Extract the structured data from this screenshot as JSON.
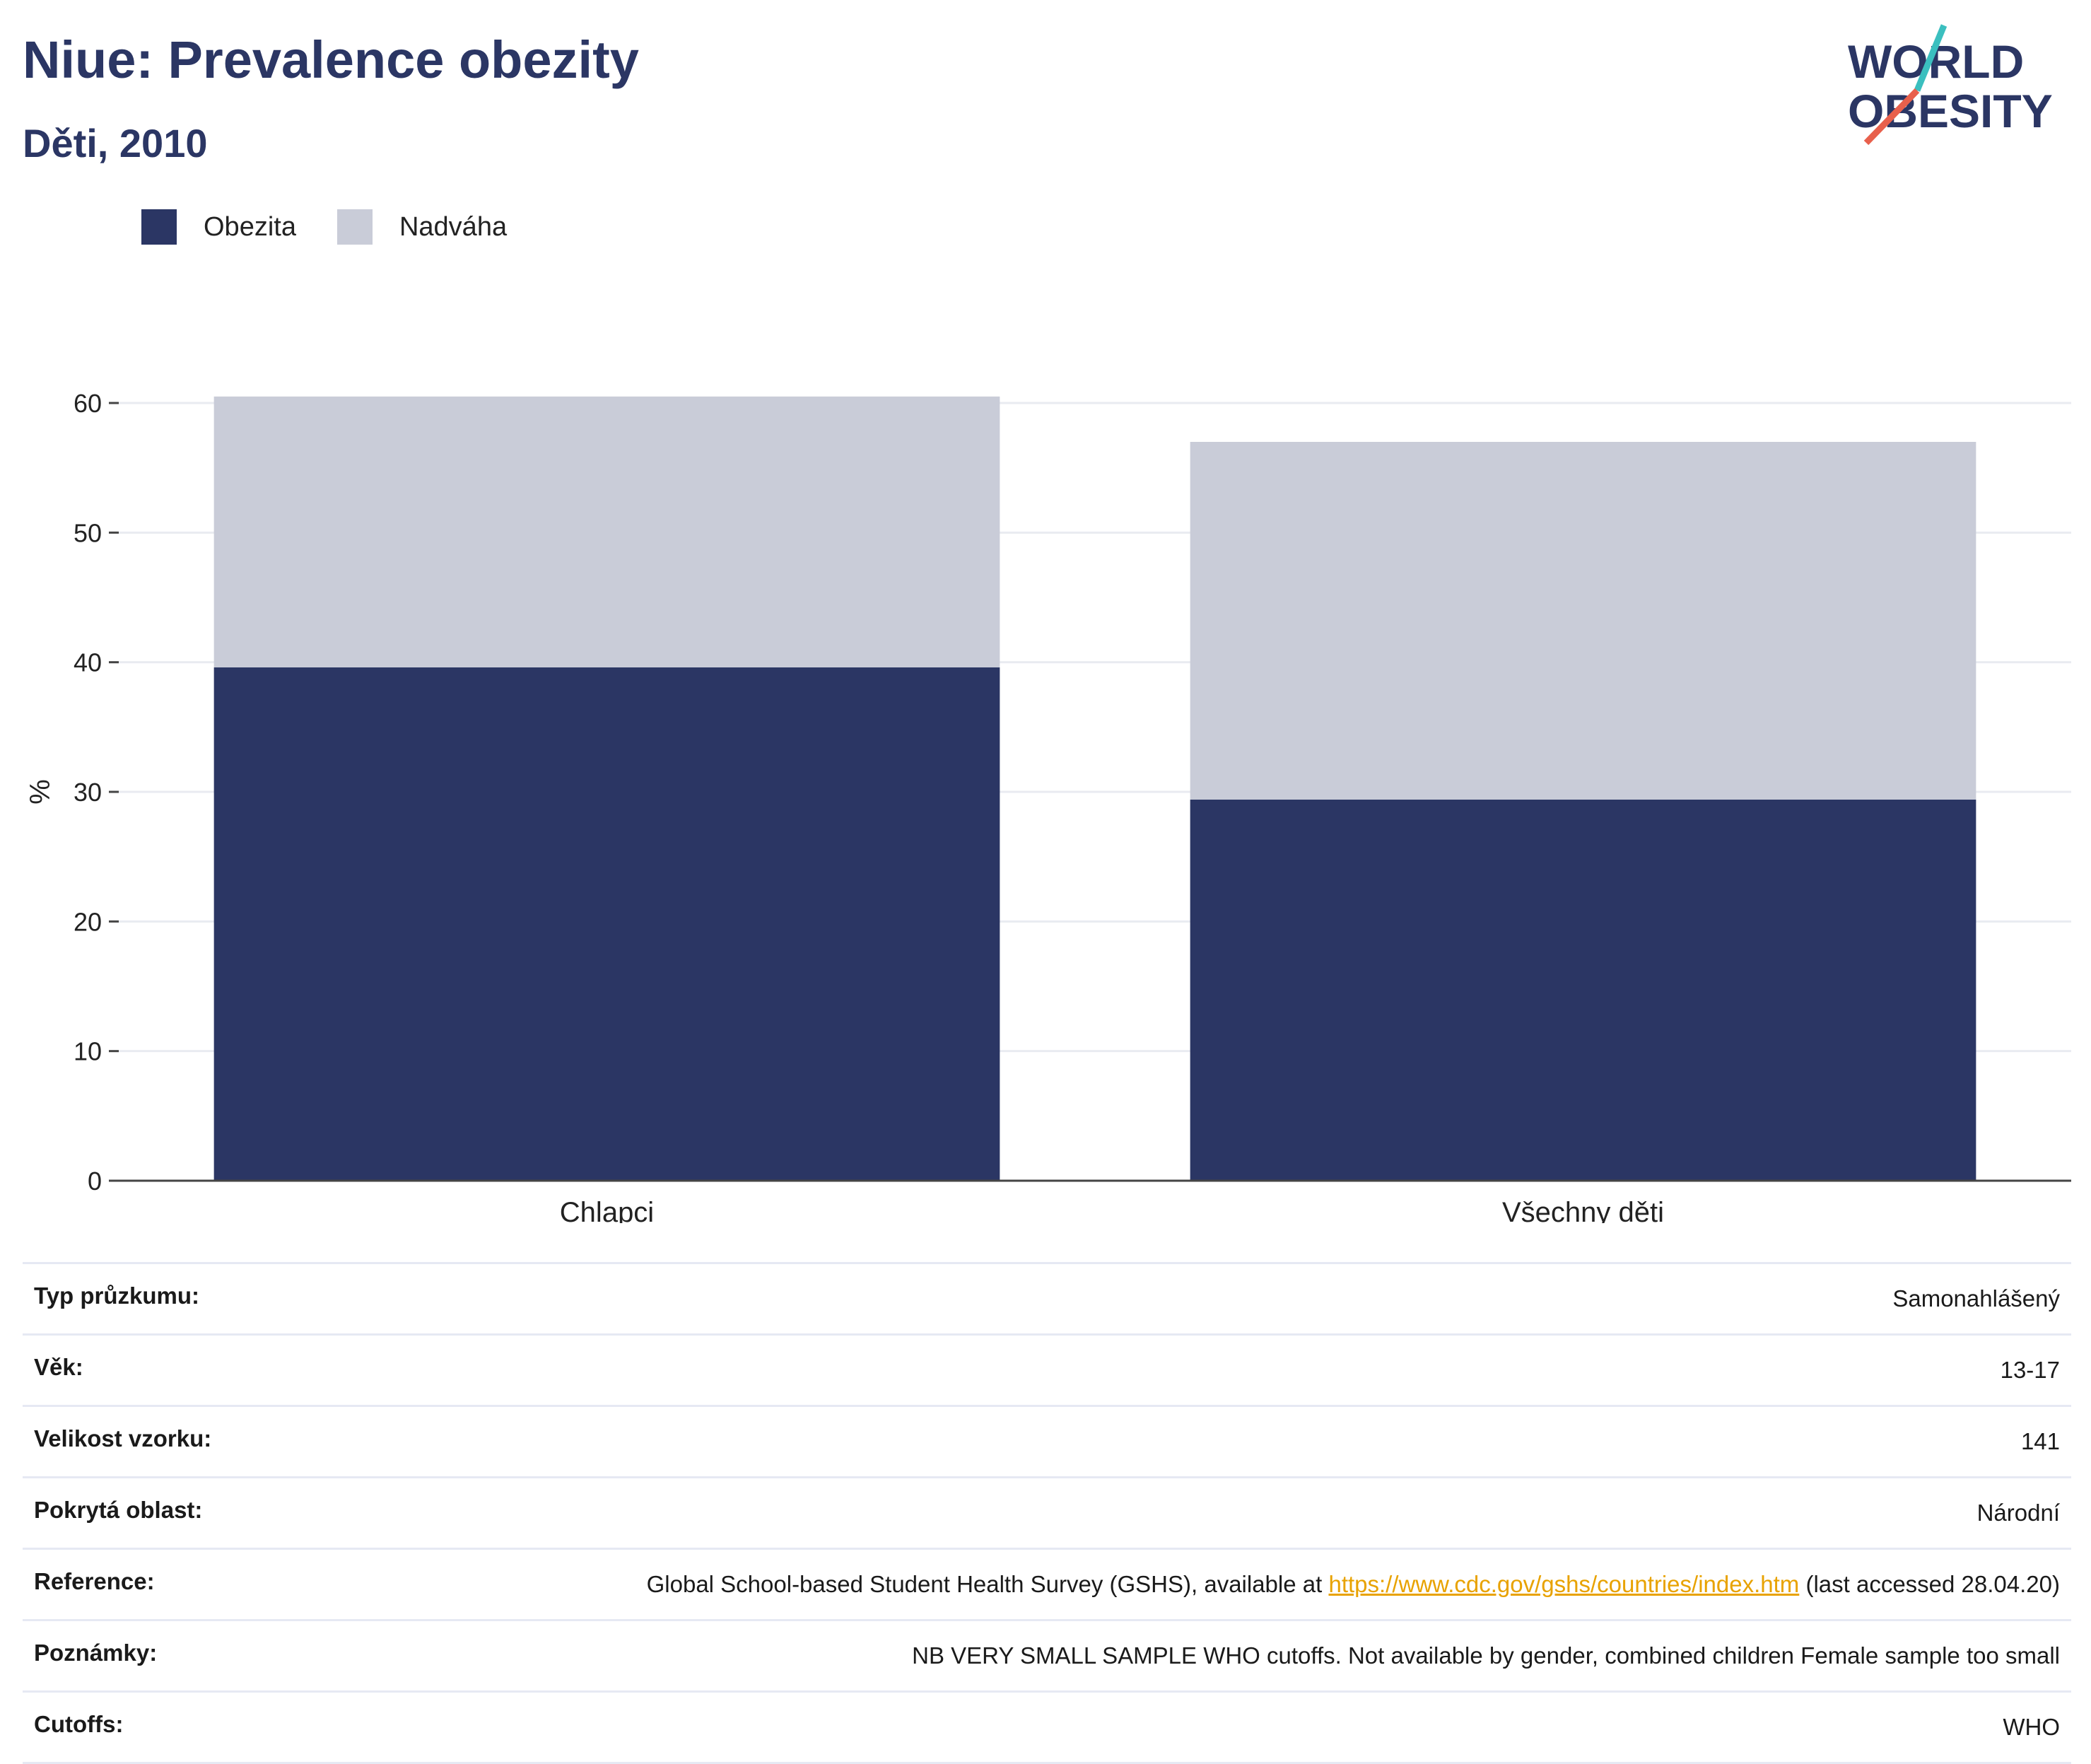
{
  "header": {
    "title": "Niue: Prevalence obezity",
    "subtitle": "Děti, 2010"
  },
  "logo": {
    "line1": "WORLD",
    "line2": "OBESITY",
    "colors": [
      "#2b3664",
      "#3bbfbf",
      "#e8604c"
    ]
  },
  "legend": [
    {
      "label": "Obezita",
      "color": "#2b3664"
    },
    {
      "label": "Nadváha",
      "color": "#c9ccd8"
    }
  ],
  "chart_data": {
    "type": "bar",
    "stacked": true,
    "categories": [
      "Chlapci",
      "Všechny děti"
    ],
    "series": [
      {
        "name": "Obezita",
        "values": [
          39.6,
          29.4
        ],
        "color": "#2b3664"
      },
      {
        "name": "Nadváha",
        "values": [
          20.9,
          27.6
        ],
        "color": "#c9ccd8"
      }
    ],
    "ylabel": "%",
    "ylim": [
      0,
      60
    ],
    "yticks": [
      0,
      10,
      20,
      30,
      40,
      50,
      60
    ],
    "grid": true,
    "legend_position": "top-left"
  },
  "metadata": {
    "rows": [
      {
        "key": "Typ průzkumu:",
        "value": "Samonahlášený"
      },
      {
        "key": "Věk:",
        "value": "13-17"
      },
      {
        "key": "Velikost vzorku:",
        "value": "141"
      },
      {
        "key": "Pokrytá oblast:",
        "value": "Národní"
      }
    ],
    "reference": {
      "key": "Reference:",
      "before": "Global School-based Student Health Survey (GSHS), available at ",
      "link": "https://www.cdc.gov/gshs/countries/index.htm",
      "after": " (last accessed 28.04.20)"
    },
    "notes": {
      "key": "Poznámky:",
      "value": "NB VERY SMALL SAMPLE WHO cutoffs. Not available by gender, combined children Female sample too small"
    },
    "cutoffs": {
      "key": "Cutoffs:",
      "value": "WHO"
    }
  }
}
